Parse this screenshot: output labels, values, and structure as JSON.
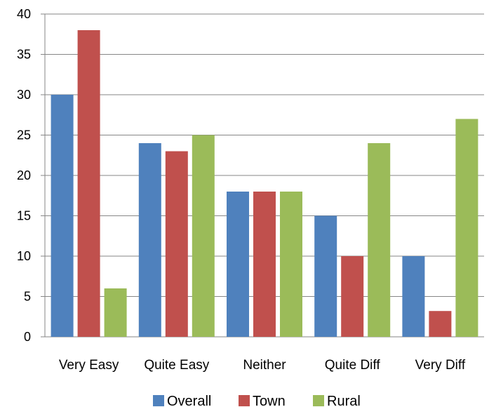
{
  "chart_data": {
    "type": "bar",
    "title": "",
    "xlabel": "",
    "ylabel": "",
    "categories": [
      "Very Easy",
      "Quite Easy",
      "Neither",
      "Quite Diff",
      "Very Diff"
    ],
    "series": [
      {
        "name": "Overall",
        "color": "#4f81bd",
        "values": [
          30,
          24,
          18,
          15,
          10
        ]
      },
      {
        "name": "Town",
        "color": "#c0504d",
        "values": [
          38,
          23,
          18,
          10,
          3.2
        ]
      },
      {
        "name": "Rural",
        "color": "#9bbb59",
        "values": [
          6,
          25,
          18,
          24,
          27
        ]
      }
    ],
    "ylim": [
      0,
      40
    ],
    "yticks": [
      "0",
      "5",
      "10",
      "15",
      "20",
      "25",
      "30",
      "35",
      "40"
    ],
    "grid": true,
    "legend": "bottom"
  }
}
